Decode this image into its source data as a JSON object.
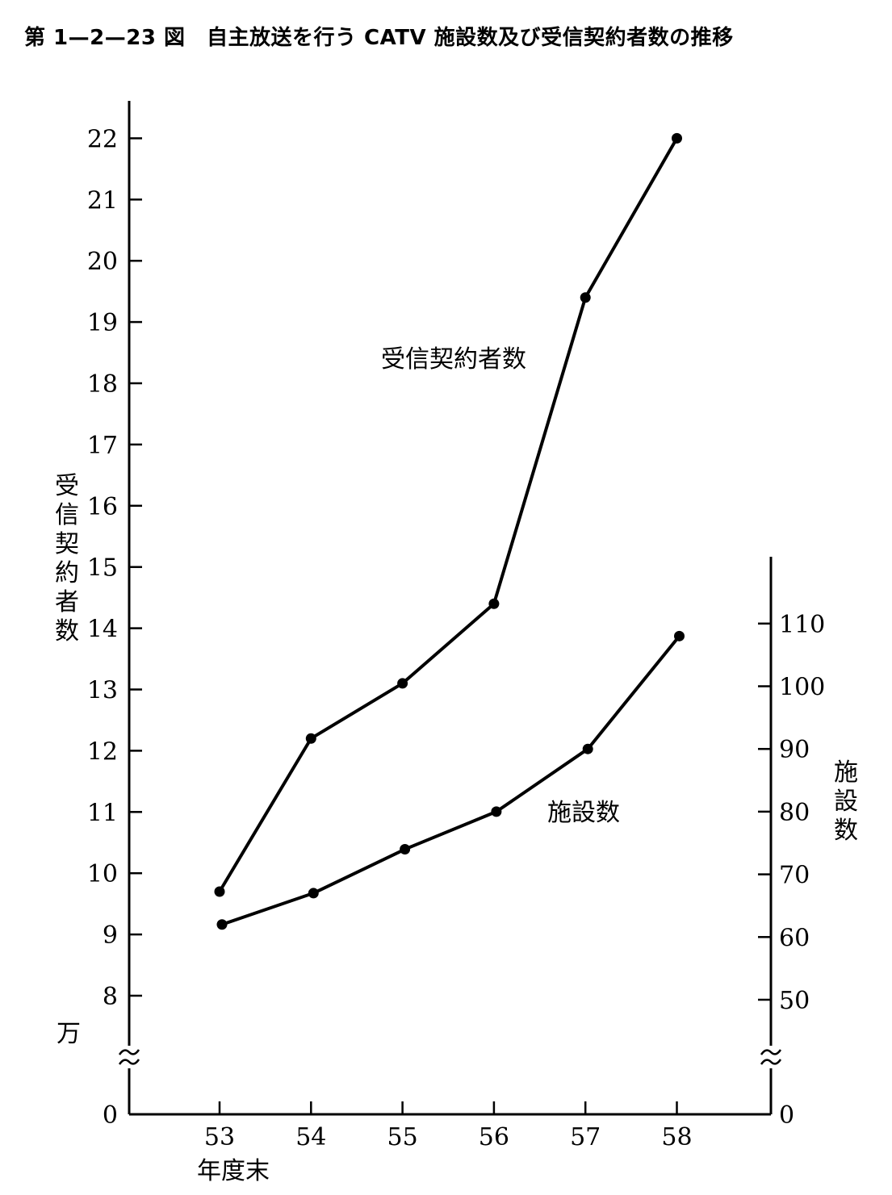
{
  "title": "第 1—2—23 図　自主放送を行う CATV 施設数及び受信契約者数の推移",
  "chart_data": {
    "type": "line",
    "title": "第 1—2—23 図　自主放送を行う CATV 施設数及び受信契約者数の推移",
    "xlabel": "年度末",
    "x": [
      "53",
      "54",
      "55",
      "56",
      "57",
      "58"
    ],
    "left_axis": {
      "label": "受信契約者数",
      "unit": "万",
      "ticks": [
        "0",
        "8",
        "9",
        "10",
        "11",
        "12",
        "13",
        "14",
        "15",
        "16",
        "17",
        "18",
        "19",
        "20",
        "21",
        "22"
      ],
      "break": true
    },
    "right_axis": {
      "label": "施設数",
      "ticks": [
        "0",
        "50",
        "60",
        "70",
        "80",
        "90",
        "100",
        "110"
      ],
      "break": true
    },
    "series": [
      {
        "name": "受信契約者数",
        "axis": "left",
        "values": [
          9.7,
          12.2,
          13.1,
          14.4,
          19.4,
          22.0
        ]
      },
      {
        "name": "施設数",
        "axis": "right",
        "values": [
          62,
          67,
          74,
          80,
          90,
          108
        ]
      }
    ],
    "grid": false,
    "legend": "inline labels"
  }
}
